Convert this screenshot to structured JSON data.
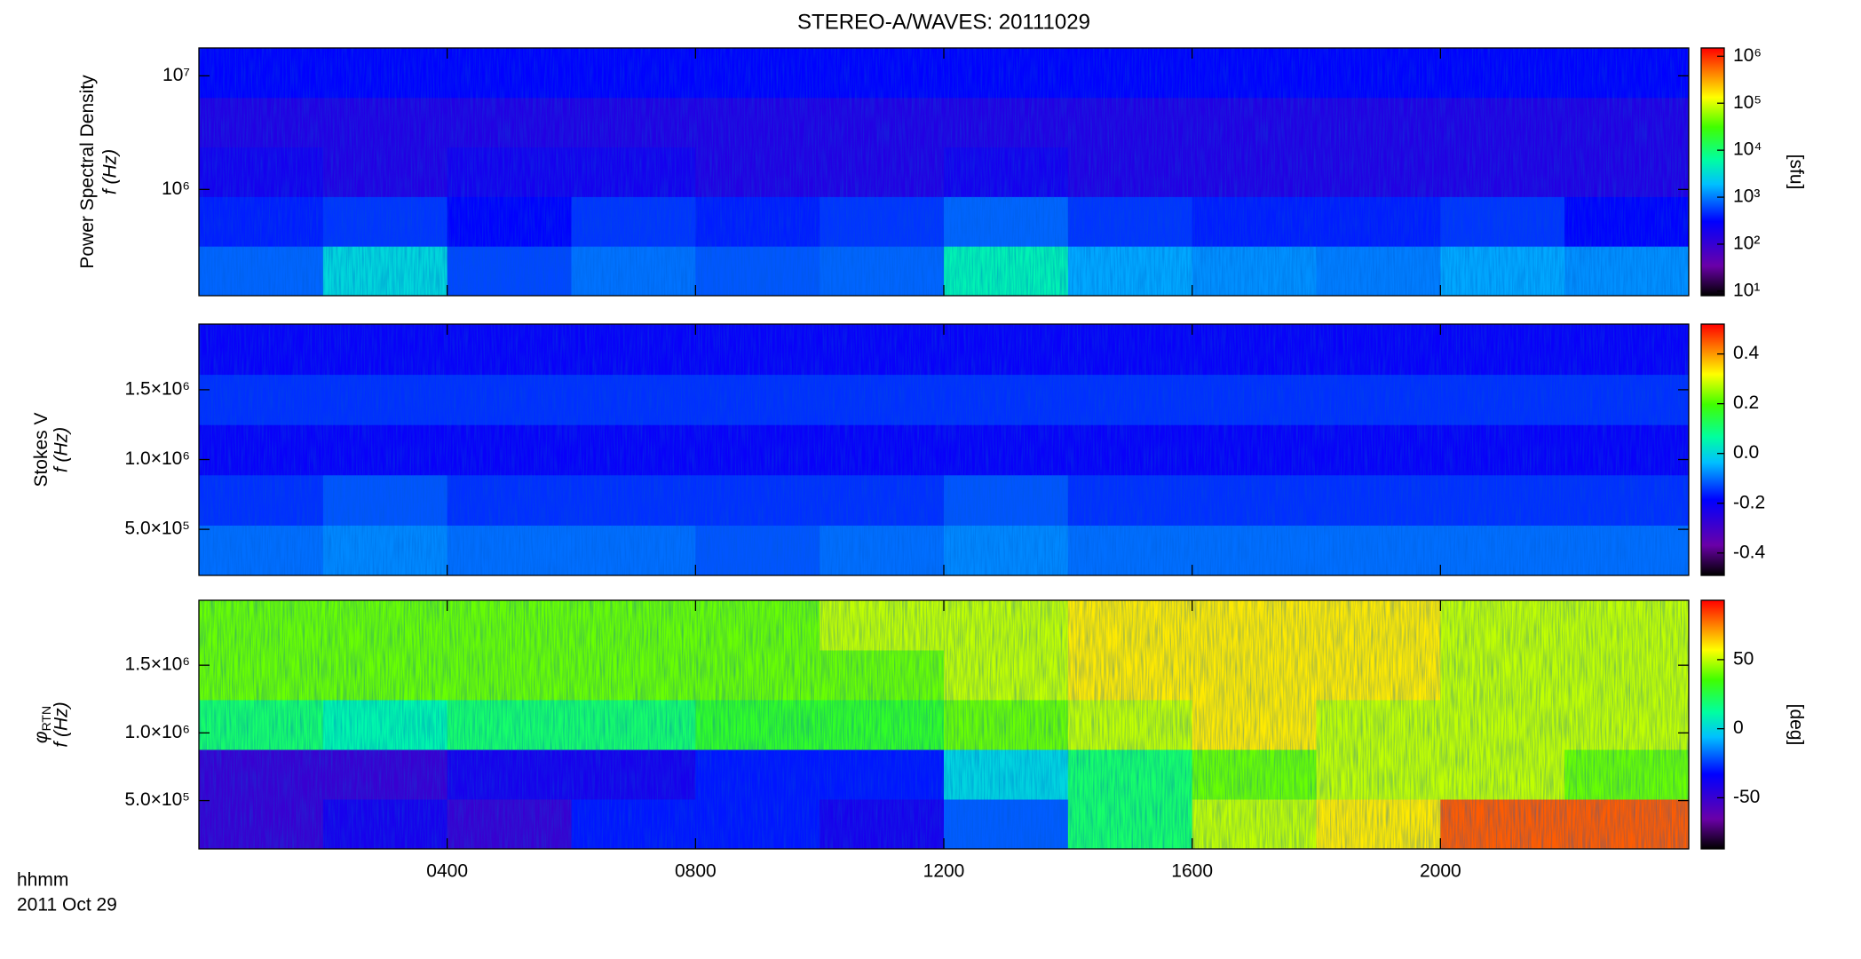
{
  "chart_data": [
    {
      "type": "heatmap",
      "title": "STEREO-A/WAVES: 20111029",
      "colormap": "rainbow",
      "ylabel": "Power Spectral Density",
      "ylabel2": "f (Hz)",
      "ylog": true,
      "ylim": [
        116000,
        17600000
      ],
      "yticks": [
        {
          "value": 1000000,
          "label": "10⁶"
        },
        {
          "value": 10000000,
          "label": "10⁷"
        }
      ],
      "xlim": [
        0,
        24
      ],
      "z": [
        [
          800,
          3000,
          600,
          900,
          700,
          800,
          5000,
          1500,
          1200,
          1000,
          1500,
          1200
        ],
        [
          400,
          500,
          300,
          500,
          400,
          500,
          800,
          500,
          400,
          400,
          500,
          300
        ],
        [
          200,
          150,
          200,
          200,
          150,
          150,
          200,
          150,
          150,
          150,
          150,
          150
        ],
        [
          150,
          150,
          150,
          150,
          150,
          150,
          150,
          150,
          150,
          150,
          150,
          150
        ],
        [
          300,
          300,
          300,
          300,
          300,
          300,
          300,
          300,
          300,
          300,
          300,
          300
        ]
      ],
      "clog": true,
      "clim": [
        8,
        1500000
      ],
      "cticks": [
        {
          "value": 10,
          "label": "10¹"
        },
        {
          "value": 100,
          "label": "10²"
        },
        {
          "value": 1000,
          "label": "10³"
        },
        {
          "value": 10000,
          "label": "10⁴"
        },
        {
          "value": 100000,
          "label": "10⁵"
        },
        {
          "value": 1000000,
          "label": "10⁶"
        }
      ],
      "clabel": "[sfu]"
    },
    {
      "type": "heatmap",
      "colormap": "rainbow",
      "ylabel": "Stokes V",
      "ylabel2": "f (Hz)",
      "ylog": false,
      "ylim": [
        170000,
        1970000
      ],
      "yticks": [
        {
          "value": 500000,
          "label": "5.0×10⁵"
        },
        {
          "value": 1000000,
          "label": "1.0×10⁶"
        },
        {
          "value": 1500000,
          "label": "1.5×10⁶"
        }
      ],
      "xlim": [
        0,
        24
      ],
      "z": [
        [
          -0.1,
          -0.08,
          -0.1,
          -0.1,
          -0.12,
          -0.1,
          -0.08,
          -0.1,
          -0.1,
          -0.1,
          -0.1,
          -0.1
        ],
        [
          -0.15,
          -0.12,
          -0.15,
          -0.15,
          -0.15,
          -0.15,
          -0.12,
          -0.15,
          -0.15,
          -0.15,
          -0.15,
          -0.15
        ],
        [
          -0.2,
          -0.2,
          -0.2,
          -0.2,
          -0.2,
          -0.2,
          -0.2,
          -0.2,
          -0.2,
          -0.2,
          -0.2,
          -0.2
        ],
        [
          -0.15,
          -0.15,
          -0.15,
          -0.15,
          -0.15,
          -0.15,
          -0.15,
          -0.15,
          -0.15,
          -0.15,
          -0.15,
          -0.15
        ],
        [
          -0.2,
          -0.2,
          -0.2,
          -0.2,
          -0.2,
          -0.2,
          -0.2,
          -0.2,
          -0.2,
          -0.2,
          -0.2,
          -0.2
        ]
      ],
      "clog": false,
      "clim": [
        -0.49,
        0.52
      ],
      "cticks": [
        {
          "value": -0.4,
          "label": "-0.4"
        },
        {
          "value": -0.2,
          "label": "-0.2"
        },
        {
          "value": 0,
          "label": "0.0"
        },
        0.2,
        0.4
      ]
    },
    {
      "type": "heatmap",
      "colormap": "rainbow",
      "ylabel": "φ",
      "ylabel_sub": "RTN",
      "ylabel2": "f (Hz)",
      "ylog": false,
      "ylim": [
        143000,
        1980000
      ],
      "yticks": [
        {
          "value": 500000,
          "label": "5.0×10⁵"
        },
        {
          "value": 1000000,
          "label": "1.0×10⁶"
        },
        {
          "value": 1500000,
          "label": "1.5×10⁶"
        }
      ],
      "xlim": [
        0,
        24
      ],
      "xticks": [
        {
          "value": 4,
          "label": "0400"
        },
        {
          "value": 8,
          "label": "0800"
        },
        {
          "value": 12,
          "label": "1200"
        },
        {
          "value": 16,
          "label": "1600"
        },
        {
          "value": 20,
          "label": "2000"
        }
      ],
      "xlabel": "hhmm",
      "date": "2011 Oct 29",
      "z": [
        [
          -50,
          -40,
          -50,
          -30,
          -30,
          -40,
          -20,
          20,
          50,
          60,
          80,
          80
        ],
        [
          -50,
          -50,
          -40,
          -40,
          -30,
          -30,
          0,
          20,
          40,
          50,
          50,
          40
        ],
        [
          20,
          10,
          20,
          20,
          30,
          30,
          40,
          50,
          60,
          50,
          50,
          50
        ],
        [
          40,
          40,
          40,
          40,
          40,
          40,
          50,
          60,
          60,
          60,
          50,
          50
        ],
        [
          40,
          40,
          40,
          40,
          40,
          50,
          50,
          60,
          60,
          60,
          50,
          50
        ]
      ],
      "clog": false,
      "clim": [
        -87,
        93
      ],
      "cticks": [
        -50,
        0,
        50
      ],
      "clabel": "[deg]"
    }
  ]
}
